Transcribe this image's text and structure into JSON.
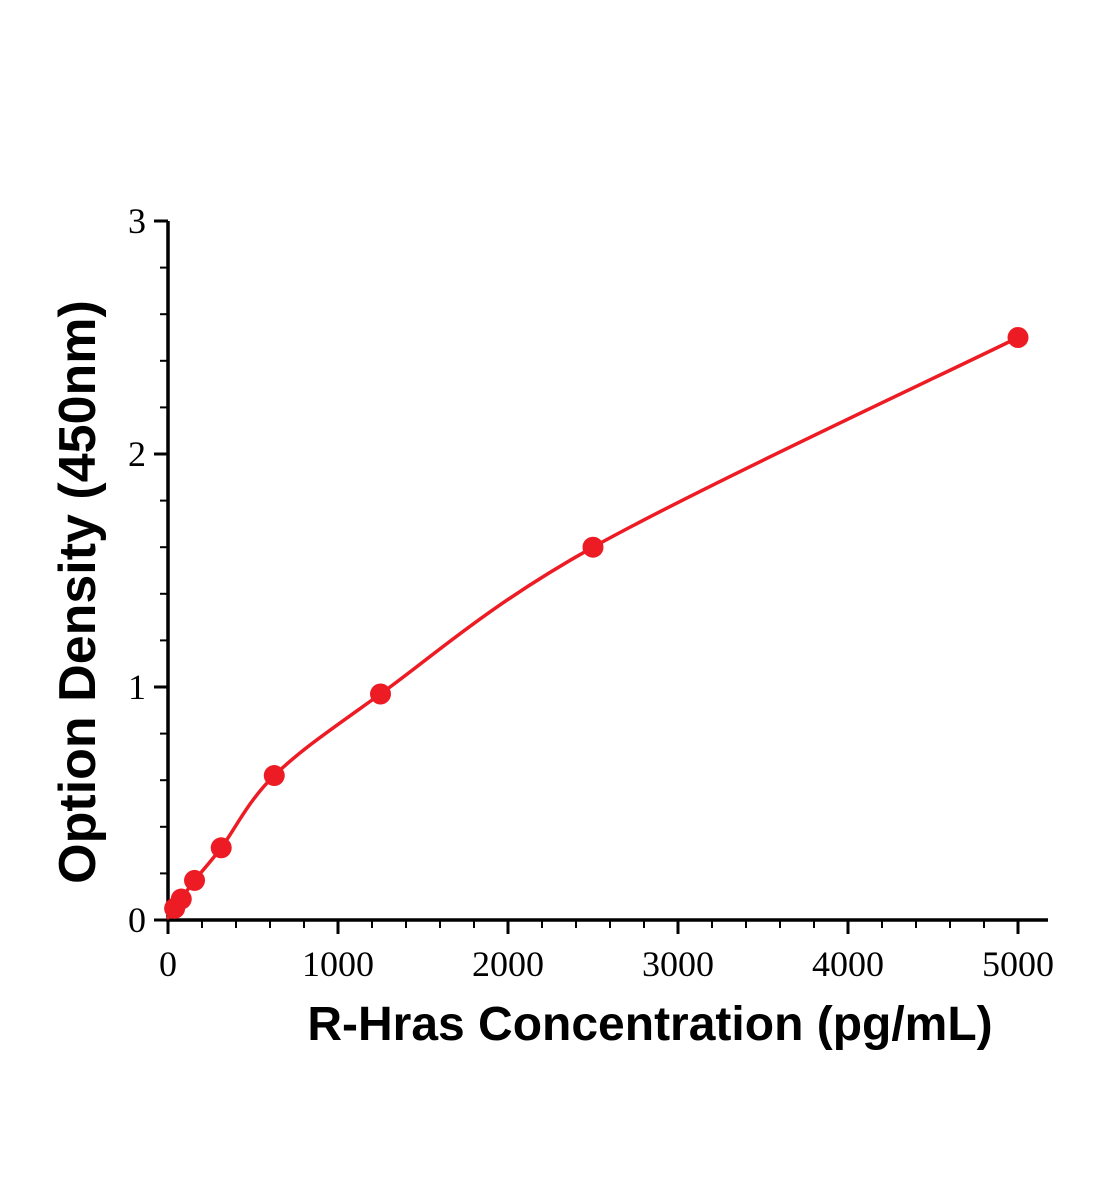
{
  "chart_data": {
    "type": "scatter",
    "title": "",
    "xlabel": "R-Hras Concentration (pg/mL)",
    "ylabel": "Option Density (450nm)",
    "xlim": [
      0,
      5000
    ],
    "ylim": [
      0,
      3
    ],
    "x_ticks": [
      0,
      1000,
      2000,
      3000,
      4000,
      5000
    ],
    "y_ticks": [
      0,
      1,
      2,
      3
    ],
    "x_minor_step": 200,
    "y_minor_step": 0.2,
    "grid": "off",
    "legend": "none",
    "line_color": "#ed1c24",
    "marker_color": "#ed1c24",
    "axis_color": "#000000",
    "text_color": "#000000",
    "curve_start": {
      "x": 0,
      "y": 0.01
    },
    "points": [
      {
        "x": 39,
        "y": 0.05
      },
      {
        "x": 78,
        "y": 0.09
      },
      {
        "x": 156,
        "y": 0.17
      },
      {
        "x": 313,
        "y": 0.31
      },
      {
        "x": 625,
        "y": 0.62
      },
      {
        "x": 1250,
        "y": 0.97
      },
      {
        "x": 2500,
        "y": 1.6
      },
      {
        "x": 5000,
        "y": 2.5
      }
    ]
  }
}
